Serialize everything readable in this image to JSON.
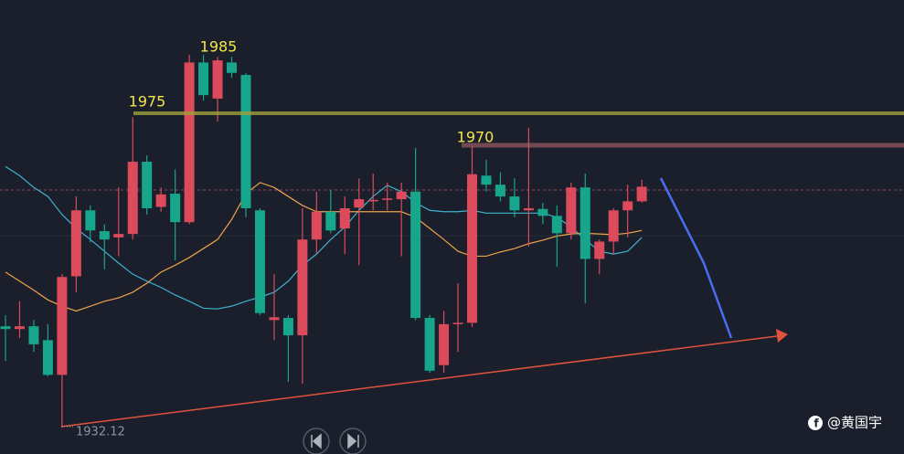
{
  "chart_data": {
    "type": "candlestick",
    "open": [
      1946.7,
      1946.3,
      1946.7,
      1944.7,
      1939.7,
      1953.9,
      1963.4,
      1960.4,
      1959.5,
      1960.0,
      1970.4,
      1963.9,
      1965.8,
      1961.7,
      1984.7,
      1979.5,
      1984.7,
      1982.9,
      1963.4,
      1947.6,
      1947.9,
      1945.4,
      1959.2,
      1963.2,
      1960.8,
      1963.8,
      1964.7,
      1964.9,
      1965.0,
      1966.1,
      1947.9,
      1941.1,
      1947.0,
      1947.2,
      1968.4,
      1967.1,
      1965.4,
      1963.4,
      1963.6,
      1962.6,
      1960.1,
      1966.7,
      1956.4,
      1958.9,
      1963.4,
      1964.7
    ],
    "high": [
      1948.3,
      1950.3,
      1947.6,
      1947.0,
      1954.2,
      1965.4,
      1964.1,
      1961.4,
      1966.7,
      1976.8,
      1971.3,
      1966.7,
      1969.3,
      1985.8,
      1985.8,
      1985.5,
      1985.5,
      1983.2,
      1963.7,
      1954.2,
      1948.3,
      1963.7,
      1966.1,
      1966.3,
      1965.4,
      1968.0,
      1968.7,
      1967.4,
      1967.4,
      1972.4,
      1948.3,
      1948.9,
      1952.9,
      1972.6,
      1970.7,
      1968.9,
      1968.0,
      1975.3,
      1964.5,
      1964.1,
      1967.4,
      1968.7,
      1959.2,
      1963.7,
      1967.1,
      1967.8
    ],
    "low": [
      1941.7,
      1945.0,
      1943.0,
      1939.5,
      1932.1,
      1951.6,
      1958.8,
      1954.9,
      1956.8,
      1959.2,
      1962.8,
      1963.2,
      1956.2,
      1961.4,
      1979.2,
      1976.2,
      1982.5,
      1962.4,
      1948.3,
      1944.7,
      1938.7,
      1938.4,
      1957.1,
      1960.1,
      1957.1,
      1955.5,
      1963.4,
      1963.4,
      1956.8,
      1947.6,
      1940.0,
      1940.0,
      1943.0,
      1946.6,
      1966.1,
      1964.7,
      1962.4,
      1958.2,
      1961.4,
      1955.3,
      1959.2,
      1950.0,
      1954.2,
      1957.1,
      1959.5,
      1964.5
    ],
    "close": [
      1946.3,
      1946.7,
      1944.1,
      1939.7,
      1953.8,
      1963.4,
      1960.5,
      1959.2,
      1960.0,
      1970.4,
      1963.7,
      1965.7,
      1961.7,
      1984.7,
      1980.0,
      1985.0,
      1983.2,
      1963.7,
      1948.6,
      1948.0,
      1945.4,
      1959.2,
      1963.2,
      1960.5,
      1963.7,
      1965.0,
      1964.9,
      1965.1,
      1966.1,
      1947.9,
      1940.3,
      1947.0,
      1947.2,
      1968.6,
      1967.1,
      1965.4,
      1963.4,
      1963.7,
      1962.6,
      1960.1,
      1966.7,
      1956.4,
      1958.9,
      1963.4,
      1964.7,
      1966.8
    ],
    "up_color": "#dc4b5b",
    "down_color": "#17a58c",
    "series": [
      {
        "color": "#3fb2d0",
        "values": [
          1969.7,
          1968.4,
          1966.7,
          1965.4,
          1962.8,
          1960.8,
          1959.2,
          1957.5,
          1955.8,
          1954.2,
          1953.2,
          1952.3,
          1951.2,
          1950.3,
          1949.3,
          1949.2,
          1949.6,
          1950.3,
          1950.9,
          1951.6,
          1953.2,
          1955.5,
          1957.1,
          1959.2,
          1961.0,
          1963.4,
          1965.4,
          1967.0,
          1966.1,
          1964.5,
          1963.4,
          1963.2,
          1963.2,
          1963.4,
          1963.0,
          1963.0,
          1963.0,
          1963.0,
          1963.0,
          1962.4,
          1961.0,
          1959.2,
          1957.5,
          1957.1,
          1957.5,
          1959.5
        ]
      },
      {
        "color": "#eda24c",
        "values": [
          1954.5,
          1953.2,
          1951.9,
          1950.5,
          1949.6,
          1948.9,
          1949.6,
          1950.3,
          1950.8,
          1951.6,
          1952.9,
          1954.5,
          1955.5,
          1956.6,
          1957.9,
          1959.2,
          1962.1,
          1965.8,
          1967.4,
          1966.7,
          1965.4,
          1964.1,
          1963.2,
          1963.2,
          1963.2,
          1963.2,
          1963.2,
          1963.2,
          1963.2,
          1962.4,
          1960.8,
          1959.2,
          1957.5,
          1956.8,
          1956.8,
          1957.4,
          1957.9,
          1958.6,
          1959.1,
          1959.7,
          1960.0,
          1960.1,
          1960.0,
          1959.9,
          1960.1,
          1960.5
        ]
      }
    ],
    "ylim": [
      1928.3,
      1993.7
    ],
    "annotations": [
      {
        "text": "1985"
      },
      {
        "text": "1975"
      },
      {
        "text": "1970"
      },
      {
        "text": "1932.12"
      }
    ]
  },
  "watermark": "@黄国宇"
}
